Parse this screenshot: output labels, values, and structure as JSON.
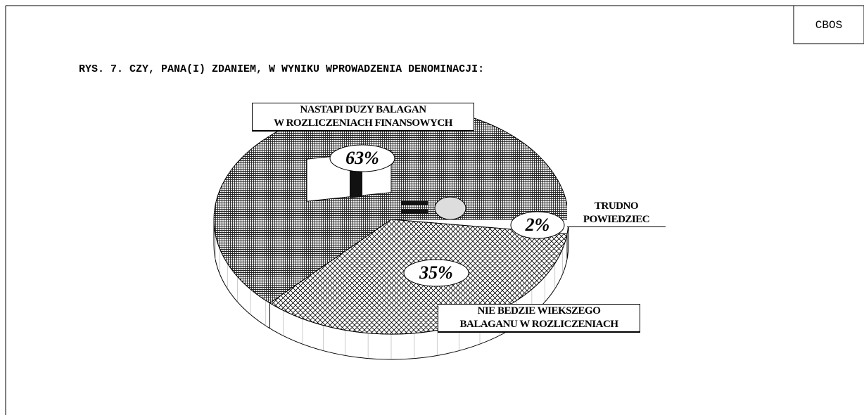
{
  "chart_data": {
    "type": "pie",
    "source": "CBOS",
    "title": "RYS. 7. CZY, PANA(I) ZDANIEM, W WYNIKU WPROWADZENIA DENOMINACJI:",
    "categories": [
      "TRUDNO\nPOWIEDZIEC",
      "NIE BEDZIE WIEKSZEGO\nBALAGANU W ROZLICZENIACH",
      "NASTAPI DUZY BALAGAN\nW ROZLICZENIACH FINANSOWYCH"
    ],
    "values": [
      2,
      35,
      63
    ],
    "value_labels": [
      "2%",
      "35%",
      "63%"
    ]
  }
}
